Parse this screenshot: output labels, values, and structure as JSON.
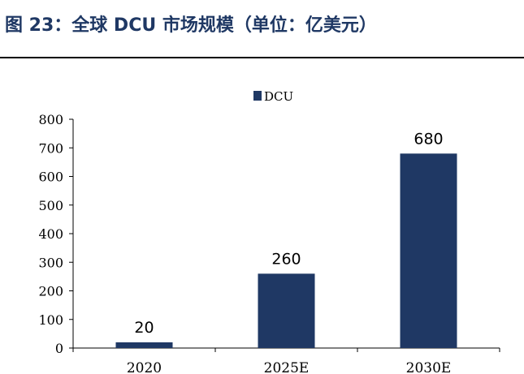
{
  "figure": {
    "title": "图 23：全球 DCU 市场规模（单位：亿美元）"
  },
  "chart_data": {
    "type": "bar",
    "categories": [
      "2020",
      "2025E",
      "2030E"
    ],
    "series": [
      {
        "name": "DCU",
        "values": [
          20,
          260,
          680
        ],
        "color": "#1f3864"
      }
    ],
    "data_labels": [
      "20",
      "260",
      "680"
    ],
    "ylim": [
      0,
      800
    ],
    "yticks": [
      0,
      100,
      200,
      300,
      400,
      500,
      600,
      700,
      800
    ],
    "grid": false,
    "legend_position": "top-center"
  }
}
